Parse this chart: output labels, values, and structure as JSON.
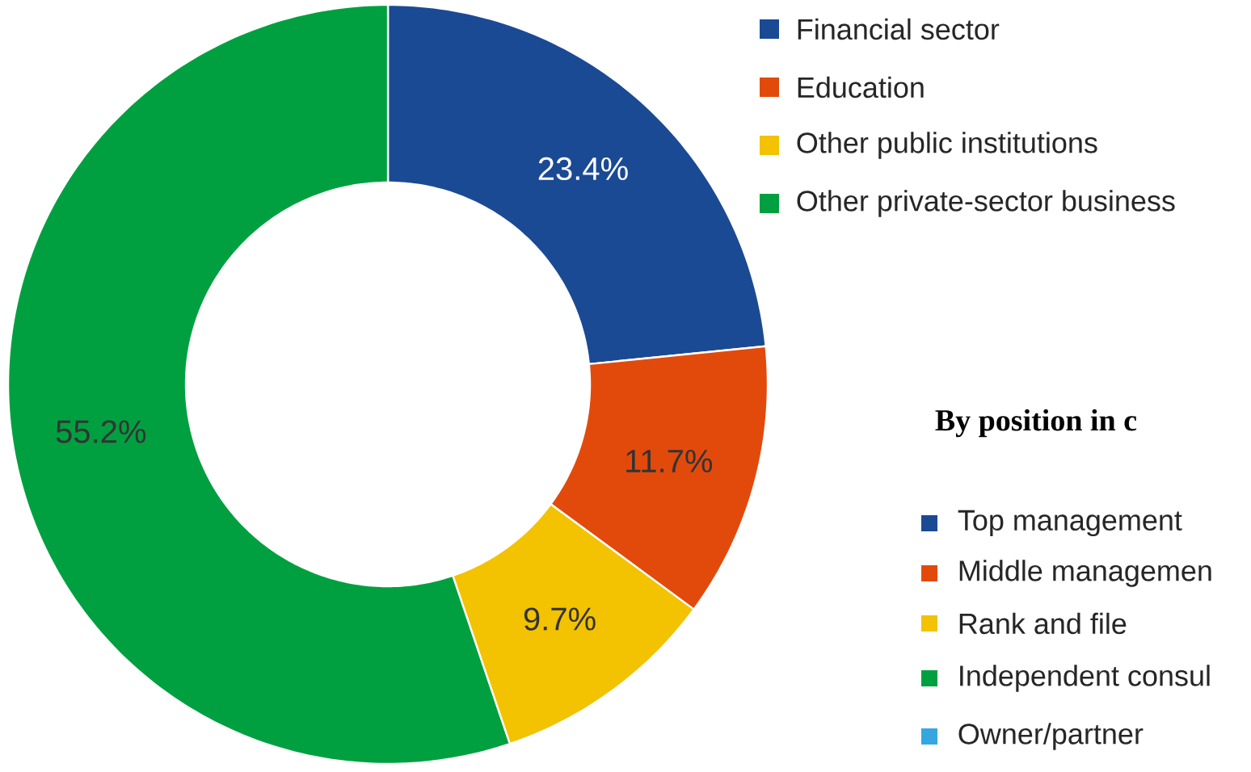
{
  "chart_data": [
    {
      "type": "donut",
      "categories": [
        "Financial sector",
        "Education",
        "Other public institutions",
        "Other private-sector business"
      ],
      "values": [
        23.4,
        11.7,
        9.7,
        55.2
      ],
      "colors": [
        "#1b4a94",
        "#e24a0c",
        "#f3c200",
        "#00a040"
      ],
      "value_labels": [
        "23.4%",
        "11.7%",
        "9.7%",
        "55.2%"
      ],
      "legend": "top right"
    },
    {
      "type": "other",
      "title": "By position in c",
      "categories": [
        "Top management",
        "Middle managemen",
        "Rank and file",
        "Independent consul",
        "Owner/partner"
      ],
      "colors": [
        "#1b4a94",
        "#e24a0c",
        "#f3c200",
        "#00a040",
        "#35a7e0"
      ]
    }
  ]
}
